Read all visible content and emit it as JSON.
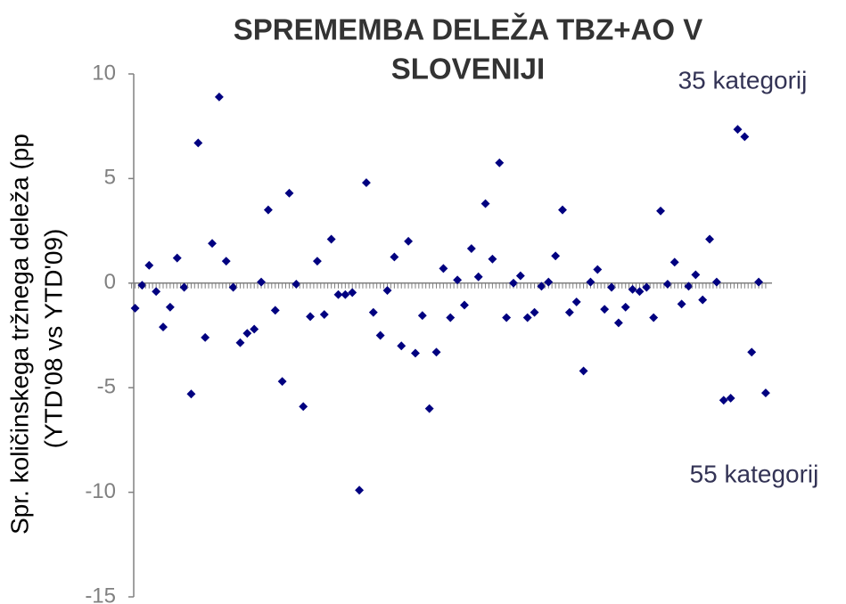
{
  "chart_data": {
    "type": "scatter",
    "title": [
      "SPREMEMBA DELEŽA TBZ+AO V",
      "SLOVENIJI"
    ],
    "y_label": [
      "Spr. količinskega tržnega deleža (pp",
      "(YTD'08 vs YTD'09)"
    ],
    "annotations": [
      "35 kategorij",
      "55 kategorij"
    ],
    "color": "#000080",
    "x": [
      1,
      2,
      3,
      4,
      5,
      6,
      7,
      8,
      9,
      10,
      11,
      12,
      13,
      14,
      15,
      16,
      17,
      18,
      19,
      20,
      21,
      22,
      23,
      24,
      25,
      26,
      27,
      28,
      29,
      30,
      31,
      32,
      33,
      34,
      35,
      36,
      37,
      38,
      39,
      40,
      41,
      42,
      43,
      44,
      45,
      46,
      47,
      48,
      49,
      50,
      51,
      52,
      53,
      54,
      55,
      56,
      57,
      58,
      59,
      60,
      61,
      62,
      63,
      64,
      65,
      66,
      67,
      68,
      69,
      70,
      71,
      72,
      73,
      74,
      75,
      76,
      77,
      78,
      79,
      80,
      81,
      82,
      83,
      84,
      85,
      86,
      87,
      88,
      89,
      90,
      91
    ],
    "values": [
      -1.2,
      -0.1,
      0.85,
      -0.4,
      -2.1,
      -1.15,
      1.2,
      -0.2,
      -5.3,
      6.7,
      -2.6,
      1.9,
      8.9,
      1.05,
      -0.2,
      -2.85,
      -2.4,
      -2.2,
      0.05,
      3.5,
      -1.3,
      -4.7,
      4.3,
      -0.05,
      -5.9,
      -1.6,
      1.05,
      -1.5,
      2.1,
      -0.55,
      -0.55,
      -0.45,
      -9.9,
      4.8,
      -1.4,
      -2.5,
      -0.35,
      1.25,
      -3.0,
      2.0,
      -3.35,
      -1.55,
      -6.0,
      -3.3,
      0.7,
      -1.65,
      0.15,
      -1.05,
      1.65,
      0.3,
      3.8,
      1.15,
      5.75,
      -1.65,
      0,
      0.35,
      -1.65,
      -1.4,
      -0.15,
      0.05,
      1.3,
      3.5,
      -1.4,
      -0.9,
      -4.2,
      0.05,
      0.65,
      -1.25,
      -0.2,
      -1.9,
      -1.15,
      -0.3,
      -0.4,
      -0.2,
      -1.65,
      3.45,
      -0.05,
      1.0,
      -1.0,
      -0.15,
      0.4,
      -0.8,
      2.1,
      0.05,
      -5.6,
      -5.5,
      7.35,
      7.0,
      -3.3,
      0.05,
      -5.25
    ],
    "xlim": [
      0.8,
      91.9
    ],
    "ylim": [
      -15,
      10
    ],
    "yticks": [
      -15,
      -10,
      -5,
      0,
      5,
      10
    ]
  }
}
